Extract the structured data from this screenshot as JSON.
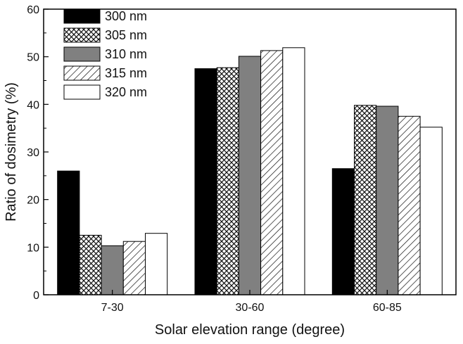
{
  "chart_data": {
    "type": "bar",
    "title": "",
    "xlabel": "Solar elevation range (degree)",
    "ylabel": "Ratio of dosimetry (%)",
    "ylim": [
      0,
      60
    ],
    "yticks": [
      0,
      10,
      20,
      30,
      40,
      50,
      60
    ],
    "categories": [
      "7-30",
      "30-60",
      "60-85"
    ],
    "legend_position": "top-left",
    "series": [
      {
        "name": "300 nm",
        "pattern": "solid-black",
        "values": [
          26.0,
          47.5,
          26.5
        ]
      },
      {
        "name": "305 nm",
        "pattern": "crosshatch",
        "values": [
          12.5,
          47.7,
          39.8
        ]
      },
      {
        "name": "310 nm",
        "pattern": "solid-gray",
        "values": [
          10.3,
          50.1,
          39.6
        ]
      },
      {
        "name": "315 nm",
        "pattern": "diagonal-hatch",
        "values": [
          11.2,
          51.3,
          37.5
        ]
      },
      {
        "name": "320 nm",
        "pattern": "solid-white",
        "values": [
          12.9,
          51.9,
          35.2
        ]
      }
    ]
  }
}
